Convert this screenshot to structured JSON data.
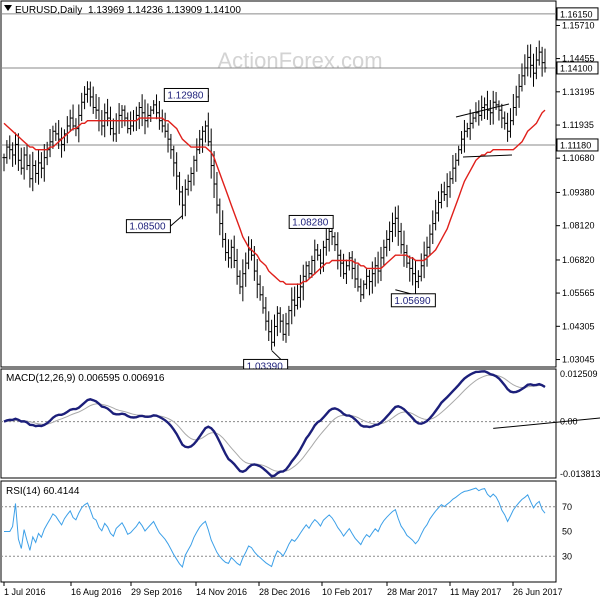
{
  "chart_data": [
    {
      "type": "candlestick",
      "title": "EURUSD,Daily",
      "ohlc_header": "1.13969 1.14236 1.13909 1.14100",
      "watermark": "ActionForex.com",
      "y_ticks": [
        "1.15710",
        "1.14455",
        "1.13195",
        "1.11935",
        "1.10680",
        "1.09380",
        "1.08120",
        "1.06820",
        "1.05565",
        "1.04305",
        "1.03045"
      ],
      "ylim": [
        1.028,
        1.166
      ],
      "x_tick_labels": [
        "1 Jul 2016",
        "16 Aug 2016",
        "29 Sep 2016",
        "14 Nov 2016",
        "28 Dec 2016",
        "10 Feb 2017",
        "28 Mar 2017",
        "11 May 2017",
        "26 Jun 2017"
      ],
      "price_tags": [
        {
          "label": "1.16150",
          "value": 1.1615
        },
        {
          "label": "1.14100",
          "value": 1.141
        },
        {
          "label": "1.11180",
          "value": 1.1118
        }
      ],
      "annotations": [
        {
          "label": "1.12980",
          "value": 1.1298,
          "bar": 71
        },
        {
          "label": "1.08500",
          "value": 1.085,
          "bar": 62
        },
        {
          "label": "1.08280",
          "value": 1.0828,
          "bar": 113
        },
        {
          "label": "1.03390",
          "value": 1.0339,
          "bar": 93
        },
        {
          "label": "1.05690",
          "value": 1.0569,
          "bar": 136
        }
      ],
      "closes": [
        1.107,
        1.111,
        1.11,
        1.108,
        1.112,
        1.106,
        1.103,
        1.108,
        1.104,
        1.099,
        1.104,
        1.101,
        1.105,
        1.103,
        1.107,
        1.11,
        1.113,
        1.117,
        1.116,
        1.114,
        1.112,
        1.116,
        1.119,
        1.122,
        1.119,
        1.118,
        1.123,
        1.128,
        1.131,
        1.133,
        1.13,
        1.126,
        1.125,
        1.121,
        1.119,
        1.124,
        1.122,
        1.118,
        1.116,
        1.121,
        1.123,
        1.125,
        1.122,
        1.118,
        1.119,
        1.121,
        1.123,
        1.126,
        1.124,
        1.121,
        1.123,
        1.125,
        1.127,
        1.124,
        1.121,
        1.119,
        1.117,
        1.114,
        1.11,
        1.105,
        1.1,
        1.094,
        1.089,
        1.095,
        1.098,
        1.101,
        1.106,
        1.11,
        1.114,
        1.117,
        1.119,
        1.113,
        1.104,
        1.097,
        1.089,
        1.082,
        1.076,
        1.071,
        1.069,
        1.073,
        1.068,
        1.062,
        1.058,
        1.063,
        1.067,
        1.072,
        1.07,
        1.064,
        1.059,
        1.055,
        1.05,
        1.045,
        1.041,
        1.037,
        1.043,
        1.048,
        1.045,
        1.04,
        1.044,
        1.049,
        1.053,
        1.051,
        1.054,
        1.058,
        1.062,
        1.066,
        1.063,
        1.068,
        1.072,
        1.07,
        1.067,
        1.073,
        1.076,
        1.079,
        1.077,
        1.074,
        1.07,
        1.067,
        1.063,
        1.066,
        1.069,
        1.065,
        1.061,
        1.058,
        1.055,
        1.059,
        1.062,
        1.06,
        1.063,
        1.066,
        1.064,
        1.069,
        1.073,
        1.076,
        1.079,
        1.082,
        1.084,
        1.079,
        1.074,
        1.071,
        1.067,
        1.065,
        1.063,
        1.06,
        1.062,
        1.066,
        1.07,
        1.073,
        1.078,
        1.082,
        1.086,
        1.09,
        1.094,
        1.093,
        1.096,
        1.099,
        1.103,
        1.106,
        1.11,
        1.114,
        1.117,
        1.118,
        1.12,
        1.122,
        1.124,
        1.123,
        1.126,
        1.127,
        1.125,
        1.124,
        1.128,
        1.127,
        1.125,
        1.122,
        1.12,
        1.117,
        1.121,
        1.126,
        1.13,
        1.134,
        1.138,
        1.141,
        1.145,
        1.142,
        1.139,
        1.144,
        1.147,
        1.143,
        1.141
      ],
      "ma_values": [
        1.12,
        1.119,
        1.118,
        1.117,
        1.116,
        1.115,
        1.114,
        1.113,
        1.112,
        1.111,
        1.111,
        1.11,
        1.11,
        1.11,
        1.11,
        1.11,
        1.111,
        1.111,
        1.112,
        1.113,
        1.114,
        1.115,
        1.116,
        1.117,
        1.118,
        1.118,
        1.119,
        1.12,
        1.12,
        1.121,
        1.121,
        1.121,
        1.121,
        1.121,
        1.121,
        1.121,
        1.121,
        1.121,
        1.121,
        1.121,
        1.121,
        1.121,
        1.121,
        1.121,
        1.121,
        1.121,
        1.121,
        1.122,
        1.122,
        1.122,
        1.122,
        1.122,
        1.122,
        1.122,
        1.122,
        1.122,
        1.121,
        1.121,
        1.12,
        1.119,
        1.118,
        1.116,
        1.114,
        1.113,
        1.112,
        1.111,
        1.111,
        1.111,
        1.111,
        1.111,
        1.111,
        1.11,
        1.109,
        1.107,
        1.104,
        1.101,
        1.098,
        1.095,
        1.092,
        1.089,
        1.086,
        1.083,
        1.08,
        1.077,
        1.075,
        1.073,
        1.072,
        1.071,
        1.07,
        1.068,
        1.067,
        1.066,
        1.064,
        1.063,
        1.062,
        1.061,
        1.06,
        1.06,
        1.059,
        1.059,
        1.059,
        1.059,
        1.059,
        1.059,
        1.06,
        1.06,
        1.061,
        1.062,
        1.063,
        1.064,
        1.065,
        1.066,
        1.067,
        1.067,
        1.068,
        1.068,
        1.068,
        1.068,
        1.068,
        1.068,
        1.068,
        1.068,
        1.067,
        1.067,
        1.066,
        1.066,
        1.065,
        1.065,
        1.065,
        1.065,
        1.065,
        1.065,
        1.066,
        1.067,
        1.068,
        1.069,
        1.07,
        1.07,
        1.07,
        1.07,
        1.07,
        1.069,
        1.069,
        1.068,
        1.068,
        1.068,
        1.068,
        1.069,
        1.07,
        1.071,
        1.072,
        1.074,
        1.076,
        1.078,
        1.08,
        1.083,
        1.086,
        1.089,
        1.092,
        1.095,
        1.098,
        1.1,
        1.102,
        1.104,
        1.106,
        1.107,
        1.108,
        1.108,
        1.109,
        1.109,
        1.11,
        1.11,
        1.11,
        1.11,
        1.11,
        1.11,
        1.11,
        1.11,
        1.111,
        1.112,
        1.113,
        1.115,
        1.117,
        1.118,
        1.119,
        1.12,
        1.122,
        1.124,
        1.125
      ]
    },
    {
      "type": "line",
      "title": "MACD(12,26,9) 0.006595 0.006916",
      "y_ticks": [
        {
          "label": "0.012509",
          "value": 0.012509
        },
        {
          "label": "0.00",
          "value": 0.0
        },
        {
          "label": "-0.013813",
          "value": -0.013813
        }
      ],
      "ylim": [
        -0.0146,
        0.0136
      ],
      "zero_line": 0.0,
      "trendline": {
        "from": [
          170,
          -0.0018
        ],
        "to": [
          240,
          0.0034
        ]
      }
    },
    {
      "type": "line",
      "title": "RSI(14) 60.4144",
      "y_ticks": [
        {
          "label": "70",
          "value": 70
        },
        {
          "label": "50",
          "value": 50
        },
        {
          "label": "30",
          "value": 30
        }
      ],
      "ylim": [
        10,
        90
      ]
    }
  ]
}
